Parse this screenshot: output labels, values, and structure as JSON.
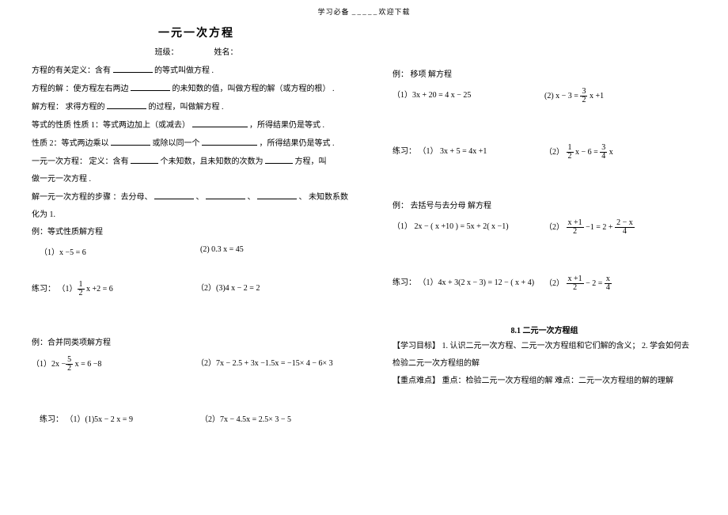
{
  "header": {
    "left": "学习必备",
    "right": "欢迎下载"
  },
  "title": "一元一次方程",
  "meta": {
    "class_label": "班级：",
    "name_label": "姓名："
  },
  "left": {
    "def1_a": "方程的有关定义：含有",
    "def1_b": "的等式叫做方程 .",
    "def2_a": "方程的解 ：使方程左右两边",
    "def2_b": "的未知数的值，叫做方程的解（或方程的根）    .",
    "def3_a": "解方程： 求得方程的",
    "def3_b": "的过程，叫做解方程  .",
    "def4_a": "等式的性质  性质 1：等式两边加上（或减去）",
    "def4_b": "，所得结果仍是等式 .",
    "def5_a": "  性质  2：等式两边乘以",
    "def5_b": "或除以同一个",
    "def5_c": "，所得结果仍是等式 .",
    "def6_a": "一元一次方程：  定义：含有",
    "def6_b": "个未知数，且未知数的次数为",
    "def6_c": "方程，叫",
    "def7": "做一元一次方程 .",
    "def8_a": "解一元一次方程的步骤   ：去分母、",
    "def8_b": "、",
    "def8_c": "、",
    "def8_d": "、 未知数系数",
    "def9": "化为 1.",
    "ex1_title": "例：等式性质解方程",
    "ex1_1": "（1）x −5 = 6",
    "ex1_2": "(2) 0.3 x  = 45",
    "pr1_label": "练习：",
    "pr1_1a": "（1）",
    "pr1_1b": "x +2 = 6",
    "pr1_2": "（2）(3)4 x − 2 = 2",
    "ex2_title": "例：合并同类项解方程",
    "ex2_1a": "（1）2x −",
    "ex2_1b": "x = 6 −8",
    "ex2_2": "（2）7x − 2.5 + 3x −1.5x = −15× 4 − 6× 3",
    "pr2_label": "练习：",
    "pr2_1": "（1）(1)5x − 2 x = 9",
    "pr2_2": "（2）7x − 4.5x = 2.5× 3 − 5"
  },
  "right": {
    "ex3_title": "例： 移项 解方程",
    "ex3_1": "（1）3x + 20 = 4 x − 25",
    "ex3_2a": "(2) x − 3 =",
    "ex3_2b": "x +1",
    "pr3_label": "练习：",
    "pr3_1": "（1） 3x + 5 = 4x +1",
    "pr3_2a": "（2）",
    "pr3_2b": "x − 6 =",
    "pr3_2c": "x",
    "ex4_title": "例： 去括号与去分母   解方程",
    "ex4_1": "（1） 2x − ( x +10 ) = 5x + 2( x −1)",
    "ex4_2a": "（2）",
    "ex4_2b": "−1 = 2 +",
    "pr4_label": "练习：",
    "pr4_1": "（1）4x + 3(2 x − 3) = 12 − ( x + 4)",
    "pr4_2a": "（2）",
    "pr4_2b": "− 2 =",
    "sec2_title": "8.1 二元一次方程组",
    "sec2_1": "【学习目标】  1. 认识二元一次方程、二元一次方程组和它们解的含义；       2. 学会如何去",
    "sec2_2": "检验二元一次方程组的解",
    "sec2_3": "【重点难点】  重点：检验二元一次方程组的解        难点：二元一次方程组的解的理解"
  },
  "fracs": {
    "half": {
      "n": "1",
      "d": "2"
    },
    "threehalf": {
      "n": "3",
      "d": "2"
    },
    "threefour": {
      "n": "3",
      "d": "4"
    },
    "fivehalf": {
      "n": "5",
      "d": "2"
    },
    "xp1_2": {
      "n": "x +1",
      "d": "2"
    },
    "tmx_4": {
      "n": "2 − x",
      "d": "4"
    },
    "x_4": {
      "n": "x",
      "d": "4"
    }
  }
}
